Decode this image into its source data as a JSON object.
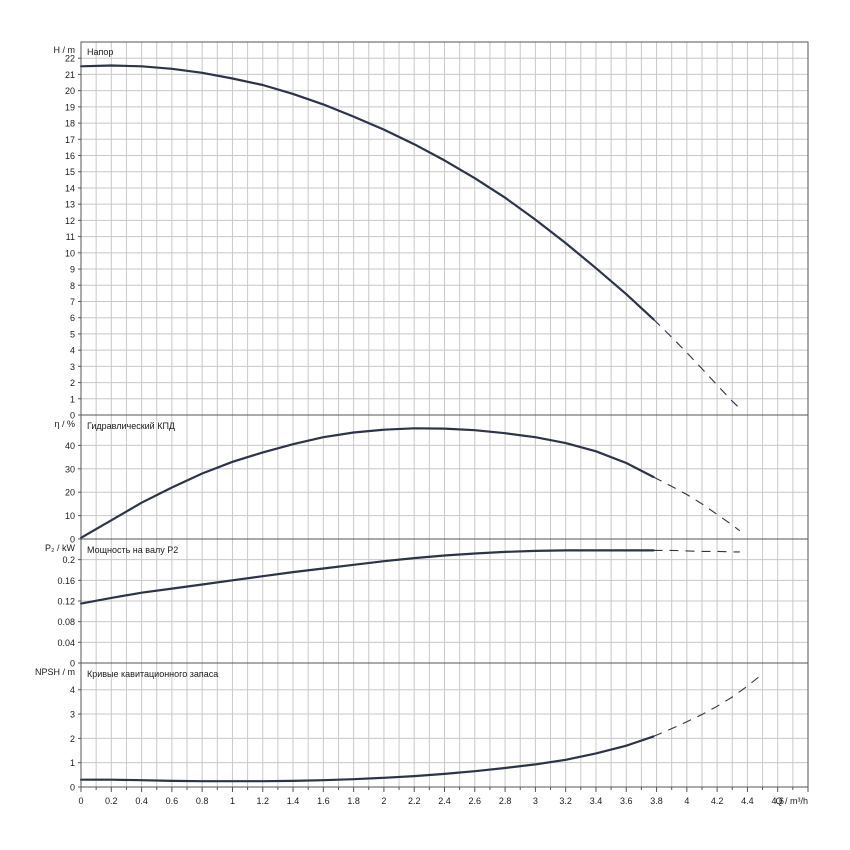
{
  "x_axis": {
    "label": "Q / m³/h",
    "ticks": [
      "0",
      "0.2",
      "0.4",
      "0.6",
      "0.8",
      "1",
      "1.2",
      "1.4",
      "1.6",
      "1.8",
      "2",
      "2.2",
      "2.4",
      "2.6",
      "2.8",
      "3",
      "3.2",
      "3.4",
      "3.6",
      "3.8",
      "4",
      "4.2",
      "4.4",
      "4.6"
    ],
    "range": [
      0,
      4.8
    ]
  },
  "chart_data": [
    {
      "type": "line",
      "title": "Напор",
      "ylabel": "H / m",
      "ylim": [
        0,
        23
      ],
      "yticks": [
        "0",
        "1",
        "2",
        "3",
        "4",
        "5",
        "6",
        "7",
        "8",
        "9",
        "10",
        "11",
        "12",
        "13",
        "14",
        "15",
        "16",
        "17",
        "18",
        "19",
        "20",
        "21",
        "22"
      ],
      "grid": true,
      "series": [
        {
          "style": "solid",
          "x": [
            0,
            0.2,
            0.4,
            0.6,
            0.8,
            1.0,
            1.2,
            1.4,
            1.6,
            1.8,
            2.0,
            2.2,
            2.4,
            2.6,
            2.8,
            3.0,
            3.2,
            3.4,
            3.6,
            3.78
          ],
          "y": [
            21.5,
            21.55,
            21.5,
            21.35,
            21.1,
            20.75,
            20.35,
            19.8,
            19.15,
            18.4,
            17.6,
            16.7,
            15.7,
            14.6,
            13.4,
            12.05,
            10.6,
            9.05,
            7.45,
            5.9
          ]
        },
        {
          "style": "dashed",
          "x": [
            3.78,
            3.9,
            4.0,
            4.1,
            4.2,
            4.3,
            4.35
          ],
          "y": [
            5.9,
            4.8,
            3.85,
            2.85,
            1.85,
            0.85,
            0.4
          ]
        }
      ]
    },
    {
      "type": "line",
      "title": "Гидравлический КПД",
      "ylabel": "η / %",
      "ylim": [
        0,
        53
      ],
      "yticks": [
        "0",
        "10",
        "20",
        "30",
        "40"
      ],
      "grid": true,
      "series": [
        {
          "style": "solid",
          "x": [
            0,
            0.2,
            0.4,
            0.6,
            0.8,
            1.0,
            1.2,
            1.4,
            1.6,
            1.8,
            2.0,
            2.2,
            2.4,
            2.6,
            2.8,
            3.0,
            3.2,
            3.4,
            3.6,
            3.78
          ],
          "y": [
            0.5,
            8,
            15.5,
            22,
            28,
            33,
            37,
            40.5,
            43.5,
            45.5,
            46.7,
            47.3,
            47.2,
            46.5,
            45.2,
            43.5,
            41,
            37.5,
            32.5,
            26.5
          ]
        },
        {
          "style": "dashed",
          "x": [
            3.78,
            3.9,
            4.0,
            4.1,
            4.2,
            4.3,
            4.35
          ],
          "y": [
            26.5,
            22.5,
            19,
            15,
            10.5,
            6,
            3.5
          ]
        }
      ]
    },
    {
      "type": "line",
      "title": "Мощность на валу P2",
      "ylabel": "P₂ / kW",
      "ylim": [
        0,
        0.24
      ],
      "yticks": [
        "0",
        "0.04",
        "0.08",
        "0.12",
        "0.16",
        "0.2"
      ],
      "grid": true,
      "series": [
        {
          "style": "solid",
          "x": [
            0,
            0.2,
            0.4,
            0.6,
            0.8,
            1.0,
            1.2,
            1.4,
            1.6,
            1.8,
            2.0,
            2.2,
            2.4,
            2.6,
            2.8,
            3.0,
            3.2,
            3.4,
            3.6,
            3.78
          ],
          "y": [
            0.115,
            0.126,
            0.136,
            0.144,
            0.152,
            0.16,
            0.168,
            0.176,
            0.183,
            0.19,
            0.197,
            0.203,
            0.208,
            0.212,
            0.215,
            0.217,
            0.218,
            0.218,
            0.218,
            0.218
          ]
        },
        {
          "style": "dashed",
          "x": [
            3.78,
            3.9,
            4.0,
            4.1,
            4.2,
            4.3,
            4.35
          ],
          "y": [
            0.218,
            0.218,
            0.217,
            0.216,
            0.216,
            0.215,
            0.215
          ]
        }
      ]
    },
    {
      "type": "line",
      "title": "Кривые кавитационного запаса",
      "ylabel": "NPSH / m",
      "ylim": [
        0,
        5.1
      ],
      "yticks": [
        "0",
        "1",
        "2",
        "3",
        "4"
      ],
      "grid": true,
      "series": [
        {
          "style": "solid",
          "x": [
            0,
            0.2,
            0.4,
            0.6,
            0.8,
            1.0,
            1.2,
            1.4,
            1.6,
            1.8,
            2.0,
            2.2,
            2.4,
            2.6,
            2.8,
            3.0,
            3.2,
            3.4,
            3.6,
            3.78
          ],
          "y": [
            0.3,
            0.3,
            0.28,
            0.25,
            0.24,
            0.24,
            0.24,
            0.25,
            0.28,
            0.32,
            0.38,
            0.45,
            0.54,
            0.65,
            0.78,
            0.93,
            1.12,
            1.38,
            1.7,
            2.08
          ]
        },
        {
          "style": "dashed",
          "x": [
            3.78,
            3.9,
            4.0,
            4.1,
            4.2,
            4.3,
            4.4,
            4.5
          ],
          "y": [
            2.08,
            2.4,
            2.68,
            2.98,
            3.32,
            3.7,
            4.15,
            4.65
          ]
        }
      ]
    }
  ]
}
